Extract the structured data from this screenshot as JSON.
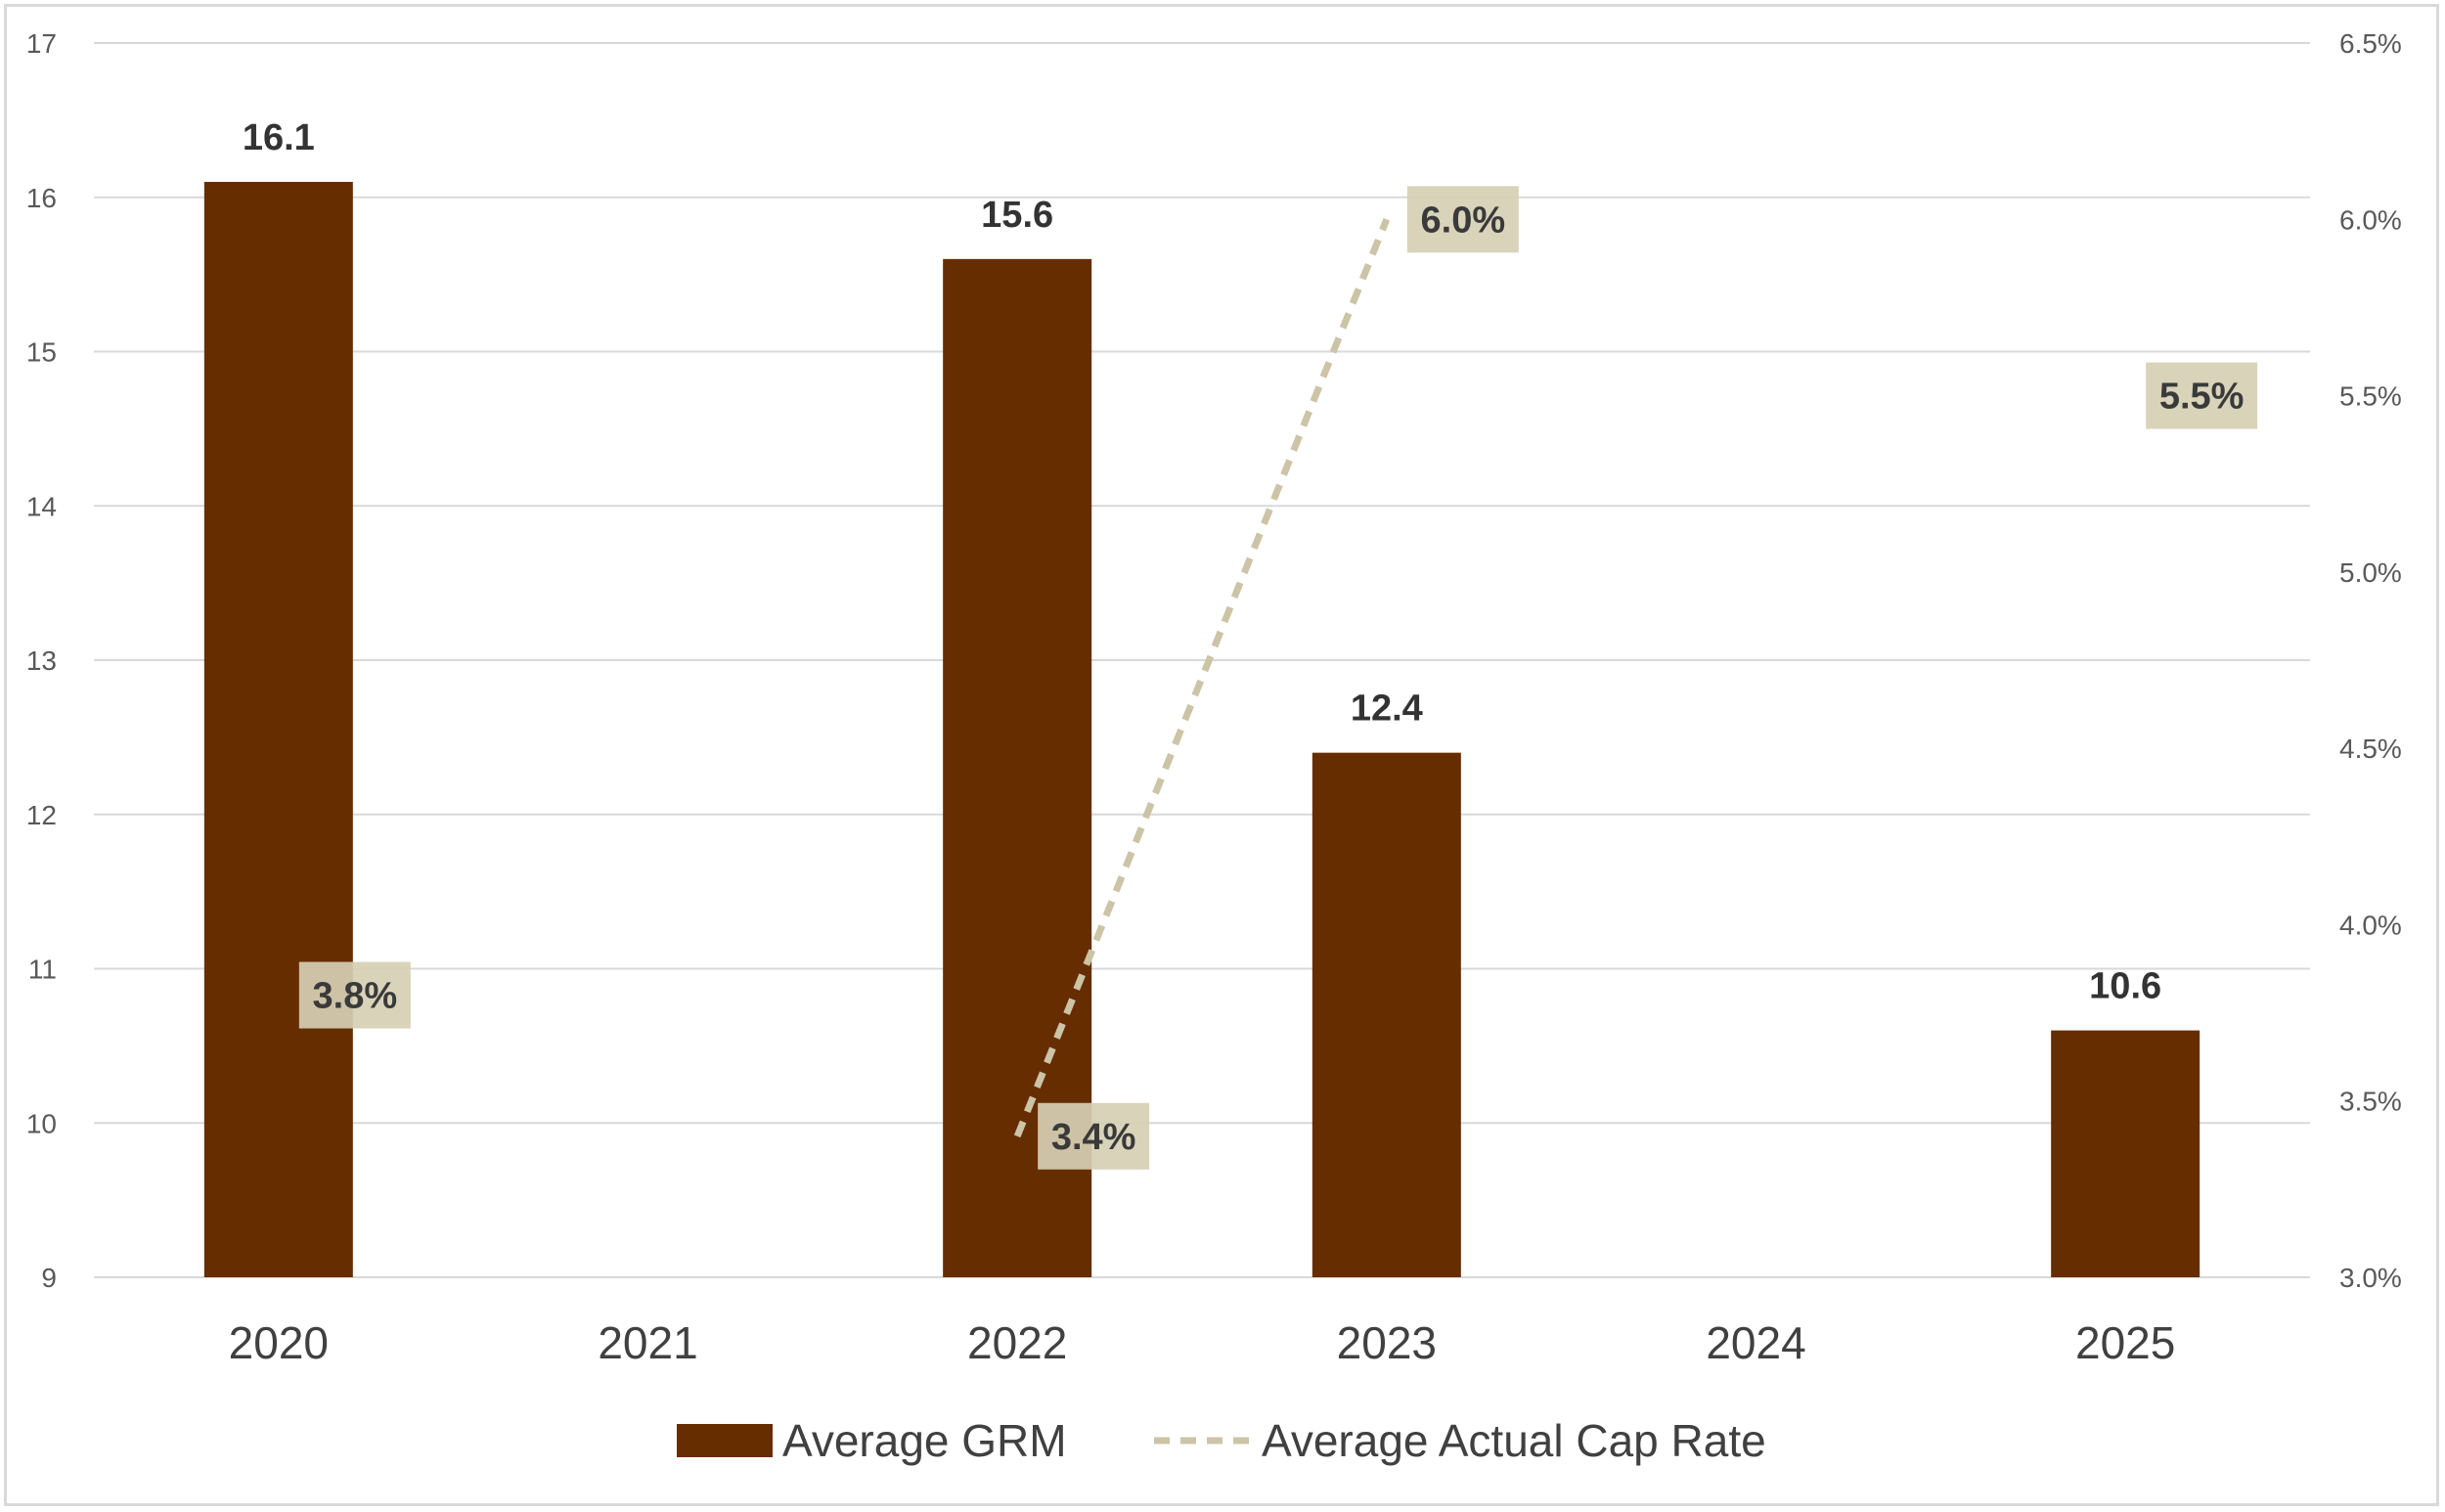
{
  "chart_data": {
    "type": "bar",
    "categories": [
      "2020",
      "2021",
      "2022",
      "2023",
      "2024",
      "2025"
    ],
    "series": [
      {
        "name": "Average GRM",
        "type": "bar",
        "axis": "left",
        "color": "#662d00",
        "values": [
          16.1,
          null,
          15.6,
          12.4,
          null,
          10.6
        ],
        "labels": [
          "16.1",
          "",
          "15.6",
          "12.4",
          "",
          "10.6"
        ]
      },
      {
        "name": "Average Actual Cap Rate",
        "type": "line",
        "style": "dashed",
        "axis": "right",
        "color": "#ccc4a6",
        "values": [
          3.8,
          null,
          3.4,
          6.0,
          null,
          5.5
        ],
        "labels": [
          "3.8%",
          "",
          "3.4%",
          "6.0%",
          "",
          "5.5%"
        ]
      }
    ],
    "y_left": {
      "min": 9,
      "max": 17,
      "ticks": [
        "9",
        "10",
        "11",
        "12",
        "13",
        "14",
        "15",
        "16",
        "17"
      ]
    },
    "y_right": {
      "min": 3.0,
      "max": 6.5,
      "ticks": [
        "3.0%",
        "3.5%",
        "4.0%",
        "4.5%",
        "5.0%",
        "5.5%",
        "6.0%",
        "6.5%"
      ]
    },
    "grid": true,
    "legend_position": "bottom",
    "label_box_color": "#d6cfb4",
    "gridline_color": "#d9d9d9"
  }
}
